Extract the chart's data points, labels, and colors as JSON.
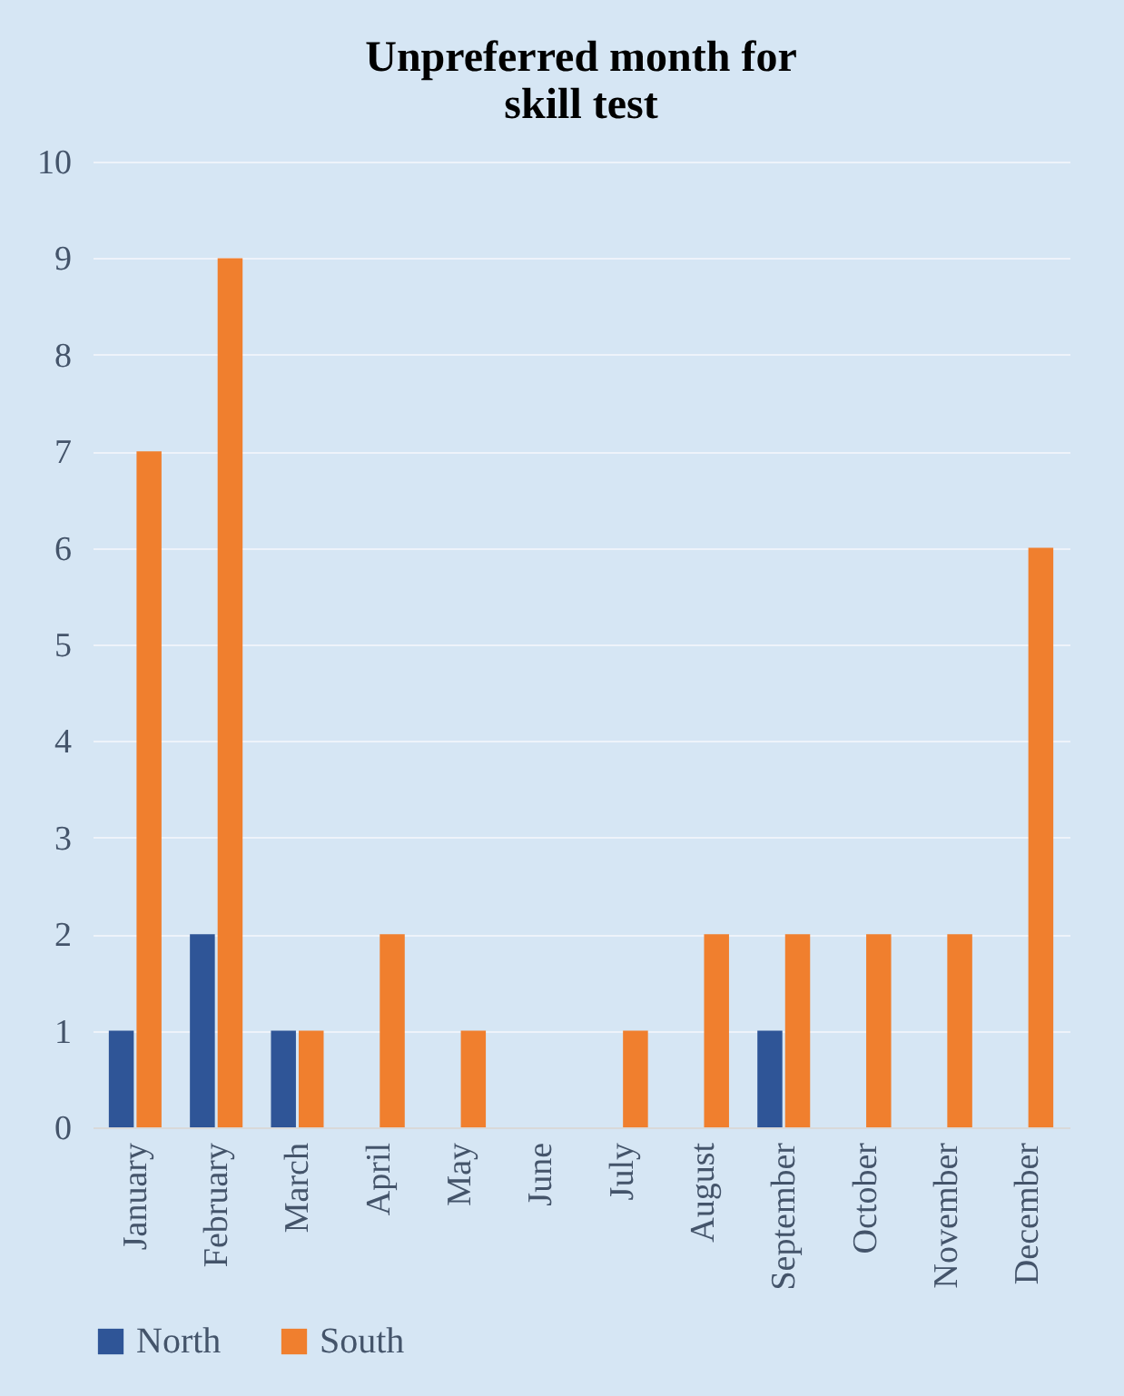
{
  "chart_data": {
    "type": "bar",
    "title": "Unpreferred month for skill test",
    "categories": [
      "January",
      "February",
      "March",
      "April",
      "May",
      "June",
      "July",
      "August",
      "September",
      "October",
      "November",
      "December"
    ],
    "series": [
      {
        "name": "North",
        "color": "#2f5597",
        "values": [
          1,
          2,
          1,
          0,
          0,
          0,
          0,
          0,
          1,
          0,
          0,
          0
        ]
      },
      {
        "name": "South",
        "color": "#f07f2e",
        "values": [
          7,
          9,
          1,
          2,
          1,
          0,
          1,
          2,
          2,
          2,
          2,
          6
        ]
      }
    ],
    "ylim": [
      0,
      10
    ],
    "yticks": [
      0,
      1,
      2,
      3,
      4,
      5,
      6,
      7,
      8,
      9,
      10
    ],
    "grid": "y",
    "legend": "bottom"
  }
}
